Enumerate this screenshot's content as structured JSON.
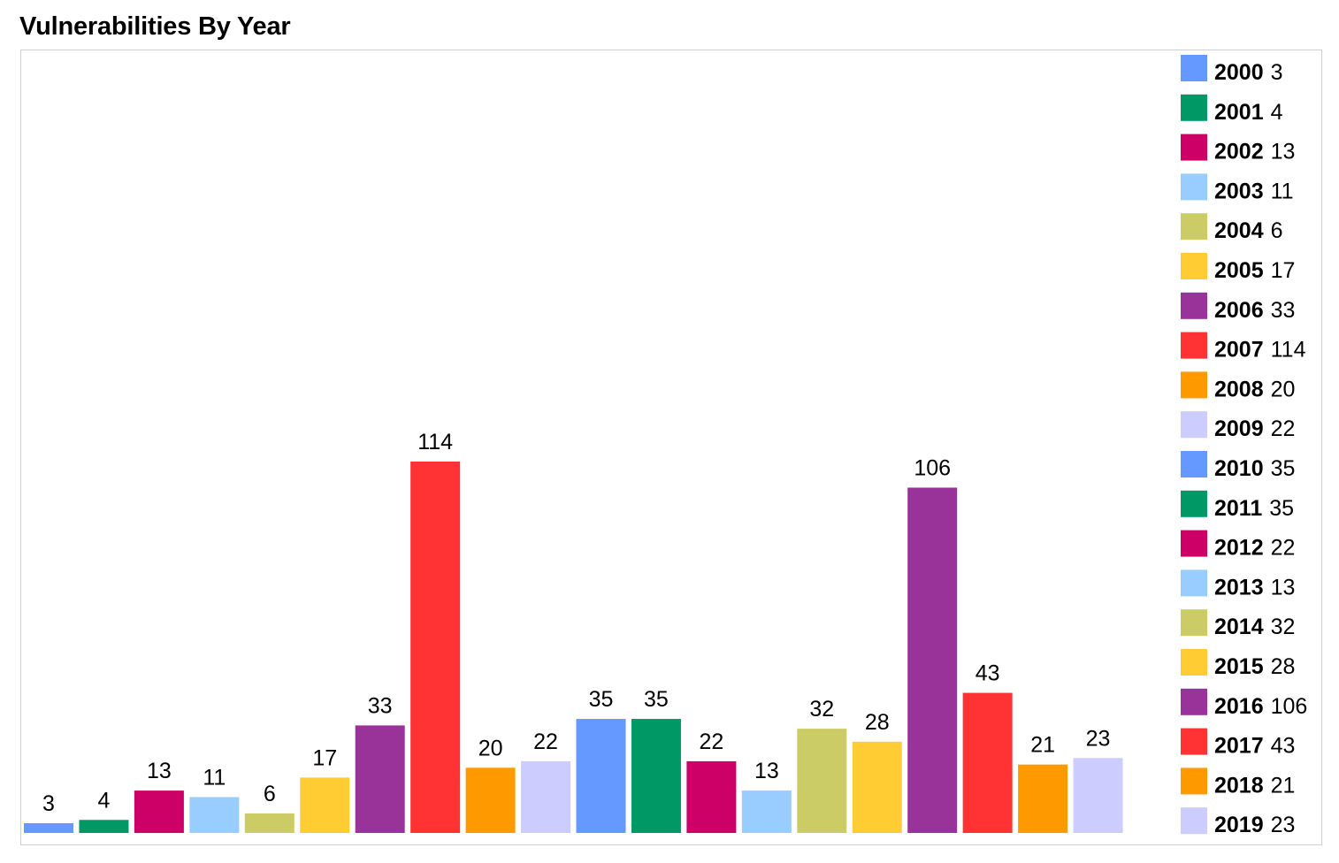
{
  "chart_data": {
    "type": "bar",
    "title": "Vulnerabilities By Year",
    "xlabel": "",
    "ylabel": "",
    "ylim": [
      0,
      114
    ],
    "grid": false,
    "legend_position": "right",
    "show_data_labels": true,
    "categories": [
      "2000",
      "2001",
      "2002",
      "2003",
      "2004",
      "2005",
      "2006",
      "2007",
      "2008",
      "2009",
      "2010",
      "2011",
      "2012",
      "2013",
      "2014",
      "2015",
      "2016",
      "2017",
      "2018",
      "2019"
    ],
    "values": [
      3,
      4,
      13,
      11,
      6,
      17,
      33,
      114,
      20,
      22,
      35,
      35,
      22,
      13,
      32,
      28,
      106,
      43,
      21,
      23
    ],
    "colors": [
      "#6699ff",
      "#009966",
      "#cc0066",
      "#99ccff",
      "#cccc66",
      "#ffcc33",
      "#993399",
      "#ff3333",
      "#ff9900",
      "#ccccff",
      "#6699ff",
      "#009966",
      "#cc0066",
      "#99ccff",
      "#cccc66",
      "#ffcc33",
      "#993399",
      "#ff3333",
      "#ff9900",
      "#ccccff"
    ]
  }
}
